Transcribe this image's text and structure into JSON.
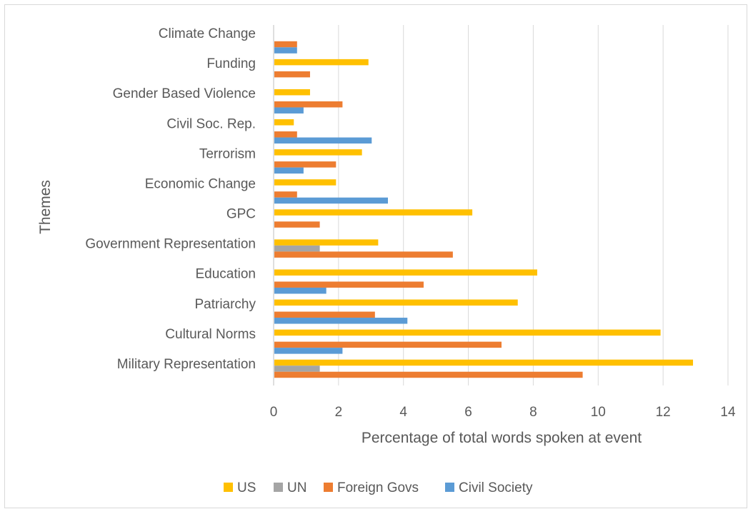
{
  "chart_data": {
    "type": "bar",
    "orientation": "horizontal",
    "title": "",
    "xlabel": "Percentage of total words spoken at event",
    "ylabel": "Themes",
    "xlim": [
      0,
      14
    ],
    "xticks": [
      0,
      2,
      4,
      6,
      8,
      10,
      12,
      14
    ],
    "grid": "vertical",
    "legend_position": "bottom",
    "categories": [
      "Climate Change",
      "Funding",
      "Gender Based Violence",
      "Civil Soc. Rep.",
      "Terrorism",
      "Economic Change",
      "GPC",
      "Government Representation",
      "Education",
      "Patriarchy",
      "Cultural Norms",
      "Military Representation"
    ],
    "series": [
      {
        "name": "US",
        "color": "#ffc000",
        "values": [
          0,
          2.9,
          1.1,
          0.6,
          2.7,
          1.9,
          6.1,
          3.2,
          8.1,
          7.5,
          11.9,
          12.9
        ]
      },
      {
        "name": "UN",
        "color": "#a5a5a5",
        "values": [
          0,
          0,
          0,
          0,
          0,
          0,
          0,
          1.4,
          0,
          0,
          0,
          1.4
        ]
      },
      {
        "name": "Foreign Govs",
        "color": "#ed7d31",
        "values": [
          0.7,
          1.1,
          2.1,
          0.7,
          1.9,
          0.7,
          1.4,
          5.5,
          4.6,
          3.1,
          7.0,
          9.5
        ]
      },
      {
        "name": "Civil Society",
        "color": "#5b9bd5",
        "values": [
          0.7,
          0,
          0.9,
          3.0,
          0.9,
          3.5,
          0,
          0,
          1.6,
          4.1,
          2.1,
          0
        ]
      }
    ]
  }
}
